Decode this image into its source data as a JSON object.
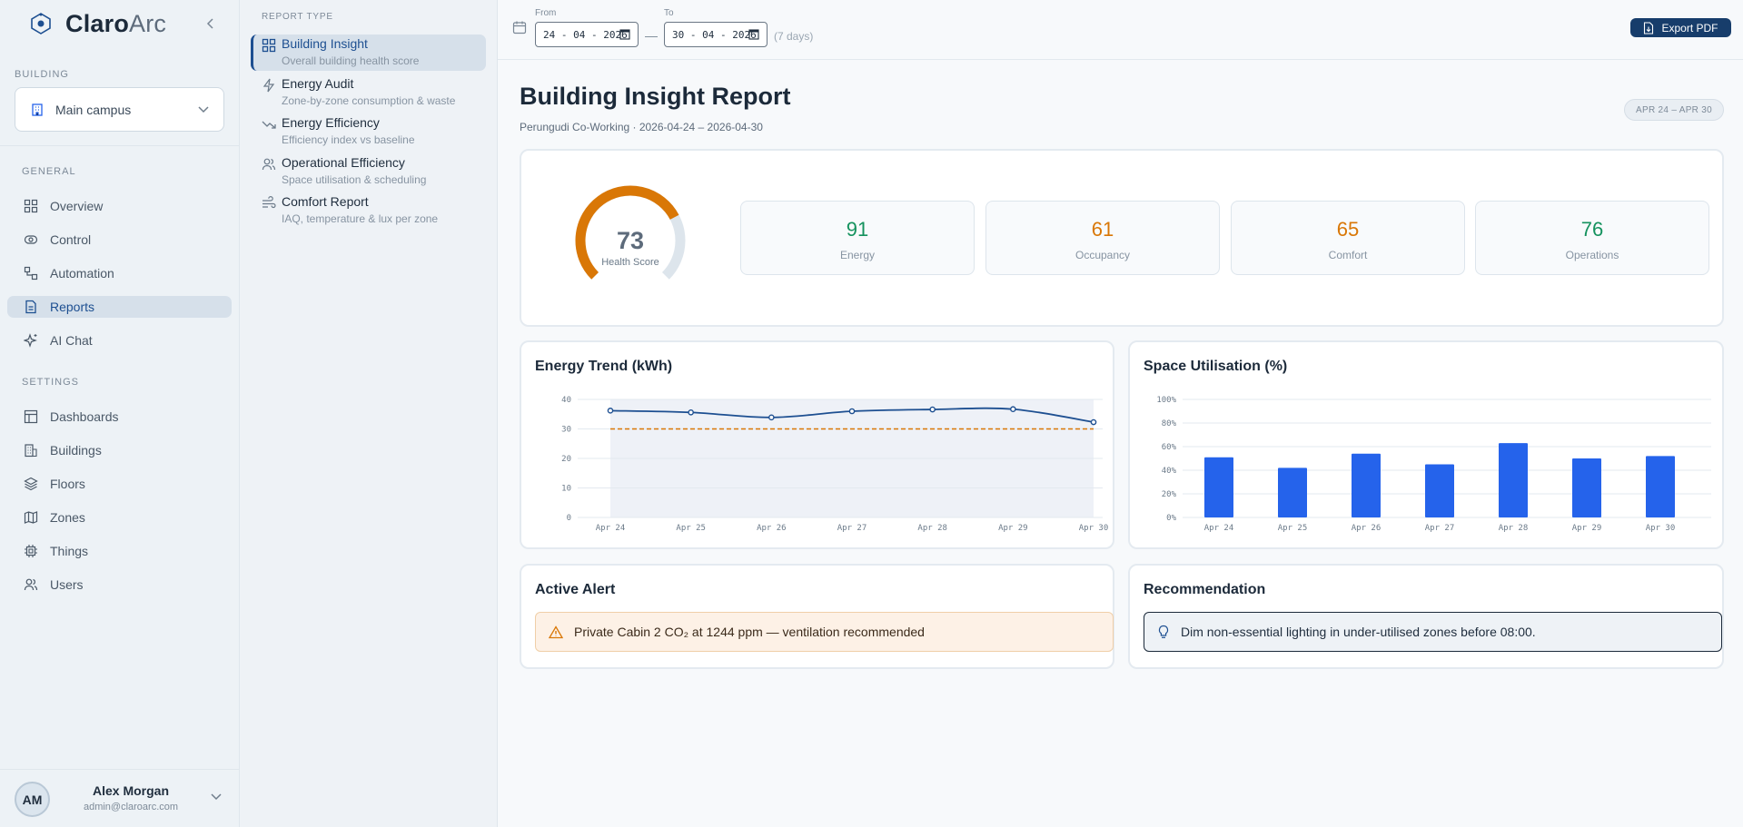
{
  "brand": {
    "name_bold": "Claro",
    "name_light": "Arc"
  },
  "sidebar": {
    "building_label": "BUILDING",
    "building_value": "Main campus",
    "general_label": "GENERAL",
    "settings_label": "SETTINGS",
    "general_items": [
      {
        "label": "Overview",
        "icon": "grid-icon"
      },
      {
        "label": "Control",
        "icon": "toggle-icon"
      },
      {
        "label": "Automation",
        "icon": "flow-icon"
      },
      {
        "label": "Reports",
        "icon": "document-icon",
        "active": true
      },
      {
        "label": "AI Chat",
        "icon": "sparkle-icon"
      }
    ],
    "settings_items": [
      {
        "label": "Dashboards",
        "icon": "layout-icon"
      },
      {
        "label": "Buildings",
        "icon": "building-icon"
      },
      {
        "label": "Floors",
        "icon": "layers-icon"
      },
      {
        "label": "Zones",
        "icon": "map-icon"
      },
      {
        "label": "Things",
        "icon": "chip-icon"
      },
      {
        "label": "Users",
        "icon": "users-icon"
      }
    ],
    "user": {
      "initials": "AM",
      "name": "Alex Morgan",
      "email": "admin@claroarc.com"
    }
  },
  "report_panel": {
    "label": "REPORT TYPE",
    "items": [
      {
        "title": "Building Insight",
        "subtitle": "Overall building health score",
        "icon": "grid-icon",
        "active": true
      },
      {
        "title": "Energy Audit",
        "subtitle": "Zone-by-zone consumption & waste",
        "icon": "bolt-icon"
      },
      {
        "title": "Energy Efficiency",
        "subtitle": "Efficiency index vs baseline",
        "icon": "trend-down-icon"
      },
      {
        "title": "Operational Efficiency",
        "subtitle": "Space utilisation & scheduling",
        "icon": "users-icon"
      },
      {
        "title": "Comfort Report",
        "subtitle": "IAQ, temperature & lux per zone",
        "icon": "wind-icon"
      }
    ]
  },
  "topbar": {
    "from_label": "From",
    "from_value": "24 - 04 - 2026",
    "to_label": "To",
    "to_value": "30 - 04 - 2026",
    "separator": "—",
    "days_note": "(7 days)",
    "export_label": "Export PDF"
  },
  "header": {
    "title": "Building Insight Report",
    "subtitle": "Perungudi Co-Working · 2026-04-24 – 2026-04-30",
    "range_pill": "APR 24 – APR 30"
  },
  "health": {
    "score": 73,
    "score_label": "Health Score",
    "gauge_color": "#d97706",
    "metrics": [
      {
        "value": "91",
        "label": "Energy",
        "color": "#15925e"
      },
      {
        "value": "61",
        "label": "Occupancy",
        "color": "#d97706"
      },
      {
        "value": "65",
        "label": "Comfort",
        "color": "#d97706"
      },
      {
        "value": "76",
        "label": "Operations",
        "color": "#15925e"
      }
    ]
  },
  "energy_chart": {
    "title": "Energy Trend (kWh)"
  },
  "space_chart": {
    "title": "Space Utilisation (%)"
  },
  "chart_data": [
    {
      "type": "line",
      "title": "Energy Trend (kWh)",
      "categories": [
        "Apr 24",
        "Apr 25",
        "Apr 26",
        "Apr 27",
        "Apr 28",
        "Apr 29",
        "Apr 30"
      ],
      "series": [
        {
          "values": [
            36.2,
            35.6,
            33.9,
            36.0,
            36.6,
            36.7,
            32.3
          ],
          "color": "#1d4f91"
        },
        {
          "values": [
            30,
            30,
            30,
            30,
            30,
            30,
            30
          ],
          "color": "#d97706",
          "style": "dashed"
        }
      ],
      "ylim": [
        0,
        40
      ],
      "yticks": [
        0,
        10,
        20,
        30,
        40
      ],
      "grid": true
    },
    {
      "type": "bar",
      "title": "Space Utilisation (%)",
      "categories": [
        "Apr 24",
        "Apr 25",
        "Apr 26",
        "Apr 27",
        "Apr 28",
        "Apr 29",
        "Apr 30"
      ],
      "values": [
        51,
        42,
        54,
        45,
        63,
        50,
        52
      ],
      "color": "#2563eb",
      "ylim": [
        0,
        100
      ],
      "yticks": [
        "0%",
        "20%",
        "40%",
        "60%",
        "80%",
        "100%"
      ],
      "grid": true
    }
  ],
  "alert": {
    "title": "Active Alert",
    "text": "Private Cabin 2 CO₂ at 1244 ppm — ventilation recommended"
  },
  "recommendation": {
    "title": "Recommendation",
    "text": "Dim non-essential lighting in under-utilised zones before 08:00."
  }
}
